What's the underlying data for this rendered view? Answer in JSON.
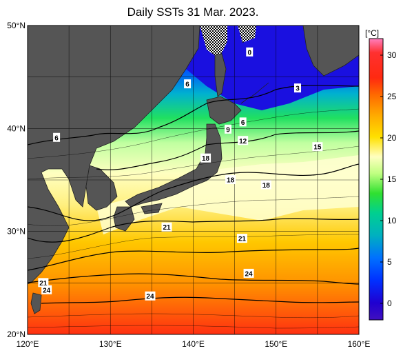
{
  "title": "Daily SSTs 31 Mar. 2023.",
  "unit_label": "[°C]",
  "lat_ticks": [
    {
      "value": 50,
      "label": "50°N"
    },
    {
      "value": 40,
      "label": "40°N"
    },
    {
      "value": 30,
      "label": "30°N"
    },
    {
      "value": 20,
      "label": "20°N"
    }
  ],
  "lon_ticks": [
    {
      "value": 120,
      "label": "120°E"
    },
    {
      "value": 130,
      "label": "130°E"
    },
    {
      "value": 140,
      "label": "140°E"
    },
    {
      "value": 150,
      "label": "150°E"
    },
    {
      "value": 160,
      "label": "160°E"
    }
  ],
  "colorbar": {
    "min": -2,
    "max": 32,
    "ticks": [
      0,
      5,
      10,
      15,
      20,
      25,
      30
    ],
    "tick_labels": [
      "0",
      "5",
      "10",
      "15",
      "20",
      "25",
      "30"
    ]
  },
  "contour_labels": [
    {
      "text": "0",
      "lon": 146.8,
      "lat": 47.4
    },
    {
      "text": "3",
      "lon": 152.6,
      "lat": 43.9
    },
    {
      "text": "6",
      "lon": 139.3,
      "lat": 44.3
    },
    {
      "text": "6",
      "lon": 146.0,
      "lat": 40.6
    },
    {
      "text": "6",
      "lon": 123.5,
      "lat": 39.1
    },
    {
      "text": "9",
      "lon": 144.2,
      "lat": 39.9
    },
    {
      "text": "12",
      "lon": 146.0,
      "lat": 38.8
    },
    {
      "text": "15",
      "lon": 155.0,
      "lat": 38.2
    },
    {
      "text": "18",
      "lon": 141.5,
      "lat": 37.1
    },
    {
      "text": "18",
      "lon": 144.5,
      "lat": 35.0
    },
    {
      "text": "18",
      "lon": 148.8,
      "lat": 34.5
    },
    {
      "text": "21",
      "lon": 136.8,
      "lat": 30.4
    },
    {
      "text": "21",
      "lon": 145.9,
      "lat": 29.3
    },
    {
      "text": "24",
      "lon": 146.7,
      "lat": 25.9
    },
    {
      "text": "24",
      "lon": 134.8,
      "lat": 23.7
    },
    {
      "text": "21",
      "lon": 121.9,
      "lat": 25.0
    },
    {
      "text": "24",
      "lon": 122.3,
      "lat": 24.3
    }
  ]
}
